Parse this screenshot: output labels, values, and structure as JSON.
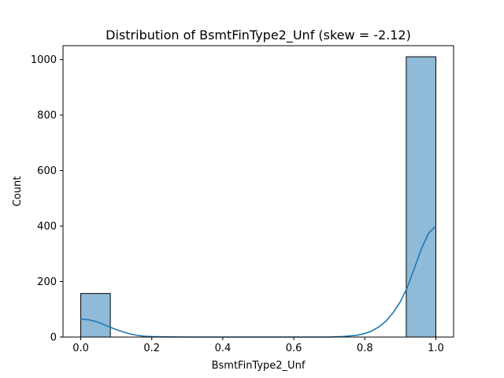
{
  "chart_data": {
    "type": "bar",
    "title": "Distribution of BsmtFinType2_Unf (skew = -2.12)",
    "xlabel": "BsmtFinType2_Unf",
    "ylabel": "Count",
    "xlim": [
      -0.05,
      1.05
    ],
    "ylim": [
      0,
      1050
    ],
    "xticks": [
      "0.0",
      "0.2",
      "0.4",
      "0.6",
      "0.8",
      "1.0"
    ],
    "xtick_values": [
      0.0,
      0.2,
      0.4,
      0.6,
      0.8,
      1.0
    ],
    "yticks": [
      "0",
      "200",
      "400",
      "600",
      "800",
      "1000"
    ],
    "ytick_values": [
      0,
      200,
      400,
      600,
      800,
      1000
    ],
    "grid": false,
    "bars": [
      {
        "x0": 0.0,
        "x1": 0.0833,
        "value": 157
      },
      {
        "x0": 0.9167,
        "x1": 1.0,
        "value": 1010
      }
    ],
    "kde": [
      [
        0.0,
        65
      ],
      [
        0.02,
        63
      ],
      [
        0.04,
        57
      ],
      [
        0.06,
        48
      ],
      [
        0.08,
        37
      ],
      [
        0.1,
        27
      ],
      [
        0.12,
        18
      ],
      [
        0.14,
        11
      ],
      [
        0.16,
        6
      ],
      [
        0.18,
        3
      ],
      [
        0.2,
        1.5
      ],
      [
        0.24,
        0.4
      ],
      [
        0.3,
        0
      ],
      [
        0.7,
        0
      ],
      [
        0.74,
        2
      ],
      [
        0.78,
        7
      ],
      [
        0.8,
        13
      ],
      [
        0.82,
        22
      ],
      [
        0.84,
        37
      ],
      [
        0.86,
        58
      ],
      [
        0.88,
        88
      ],
      [
        0.9,
        127
      ],
      [
        0.92,
        180
      ],
      [
        0.94,
        250
      ],
      [
        0.96,
        320
      ],
      [
        0.98,
        375
      ],
      [
        1.0,
        400
      ]
    ],
    "colors": {
      "bar_fill": "#8fbbd9",
      "bar_edge": "#000000",
      "kde_line": "#1f77b4"
    }
  }
}
